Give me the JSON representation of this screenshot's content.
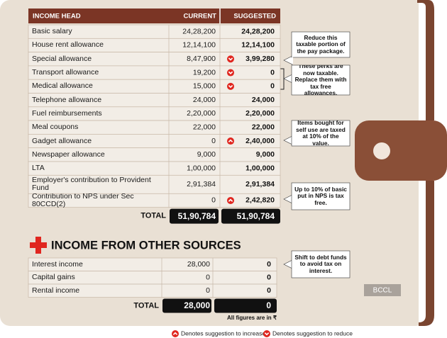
{
  "table": {
    "header": [
      "INCOME HEAD",
      "CURRENT",
      "SUGGESTED"
    ],
    "rows": [
      {
        "name": "Basic salary",
        "current": "24,28,200",
        "suggested": "24,28,200"
      },
      {
        "name": "House rent allowance",
        "current": "12,14,100",
        "suggested": "12,14,100"
      },
      {
        "name": "Special allowance",
        "current": "8,47,900",
        "suggested": "3,99,280",
        "change": "reduce"
      },
      {
        "name": "Transport allowance",
        "current": "19,200",
        "suggested": "0",
        "change": "reduce"
      },
      {
        "name": "Medical allowance",
        "current": "15,000",
        "suggested": "0",
        "change": "reduce"
      },
      {
        "name": "Telephone allowance",
        "current": "24,000",
        "suggested": "24,000"
      },
      {
        "name": "Fuel reimbursements",
        "current": "2,20,000",
        "suggested": "2,20,000"
      },
      {
        "name": "Meal coupons",
        "current": "22,000",
        "suggested": "22,000"
      },
      {
        "name": "Gadget allowance",
        "current": "0",
        "suggested": "2,40,000",
        "change": "increase"
      },
      {
        "name": "Newspaper allowance",
        "current": "9,000",
        "suggested": "9,000"
      },
      {
        "name": "LTA",
        "current": "1,00,000",
        "suggested": "1,00,000"
      },
      {
        "name": "Employer's contribution to Provident Fund",
        "current": "2,91,384",
        "suggested": "2,91,384"
      },
      {
        "name": "Contribution to NPS under Sec 80CCD(2)",
        "current": "0",
        "suggested": "2,42,820",
        "change": "increase"
      }
    ],
    "total": {
      "label": "TOTAL",
      "current": "51,90,784",
      "suggested": "51,90,784"
    }
  },
  "other_sources": {
    "title": "INCOME FROM OTHER SOURCES",
    "rows": [
      {
        "name": "Interest income",
        "current": "28,000",
        "suggested": "0"
      },
      {
        "name": "Capital gains",
        "current": "0",
        "suggested": "0"
      },
      {
        "name": "Rental income",
        "current": "0",
        "suggested": "0"
      }
    ],
    "total": {
      "label": "TOTAL",
      "current": "28,000",
      "suggested": "0"
    },
    "footnote": "All figures are in ₹"
  },
  "notes": [
    "Reduce this taxable portion of the pay package.",
    "These perks are now taxable. Replace them with tax free allowances.",
    "Items bought for self use are taxed at 10% of the value.",
    "Up to 10% of basic put in NPS is tax free.",
    "Shift to debt funds to avoid tax on interest."
  ],
  "credit": "BCCL",
  "legend": {
    "increase": "Denotes suggestion to increase",
    "reduce": "Denotes suggestion to reduce"
  }
}
